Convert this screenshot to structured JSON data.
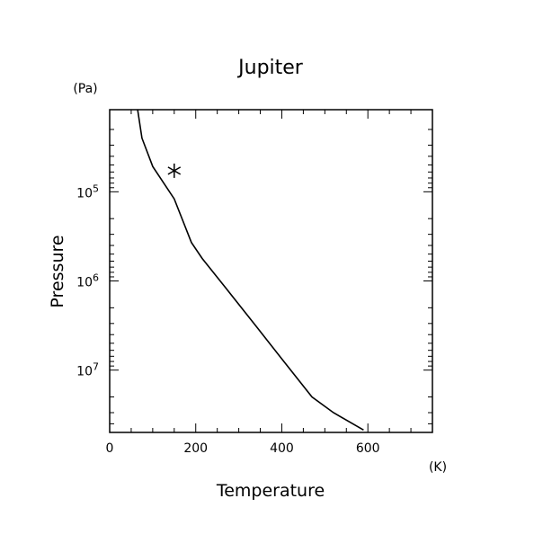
{
  "chart_data": {
    "type": "line",
    "title": "Jupiter",
    "xlabel": "Temperature",
    "ylabel": "Pressure",
    "x_unit": "(K)",
    "y_unit": "(Pa)",
    "xlim": [
      0,
      750
    ],
    "ylim": [
      12000,
      50000000
    ],
    "y_scale": "log",
    "y_inverted": true,
    "x_ticks": [
      {
        "value": 0,
        "label": "0"
      },
      {
        "value": 200,
        "label": "200"
      },
      {
        "value": 400,
        "label": "400"
      },
      {
        "value": 600,
        "label": "600"
      }
    ],
    "y_ticks": [
      {
        "value": 100000,
        "base": "10",
        "exp": "5"
      },
      {
        "value": 1000000,
        "base": "10",
        "exp": "6"
      },
      {
        "value": 10000000,
        "base": "10",
        "exp": "7"
      }
    ],
    "series": [
      {
        "name": "",
        "color": "#000000",
        "points": [
          [
            65,
            12000
          ],
          [
            75,
            25000
          ],
          [
            100,
            52000
          ],
          [
            150,
            120000
          ],
          [
            190,
            370000
          ],
          [
            215,
            560000
          ],
          [
            270,
            1200000
          ],
          [
            340,
            3200000
          ],
          [
            400,
            7500000
          ],
          [
            470,
            20000000
          ],
          [
            520,
            30000000
          ],
          [
            590,
            47000000
          ]
        ]
      }
    ],
    "markers": [
      {
        "x": 150,
        "y": 58000,
        "symbol": "asterisk"
      }
    ]
  }
}
